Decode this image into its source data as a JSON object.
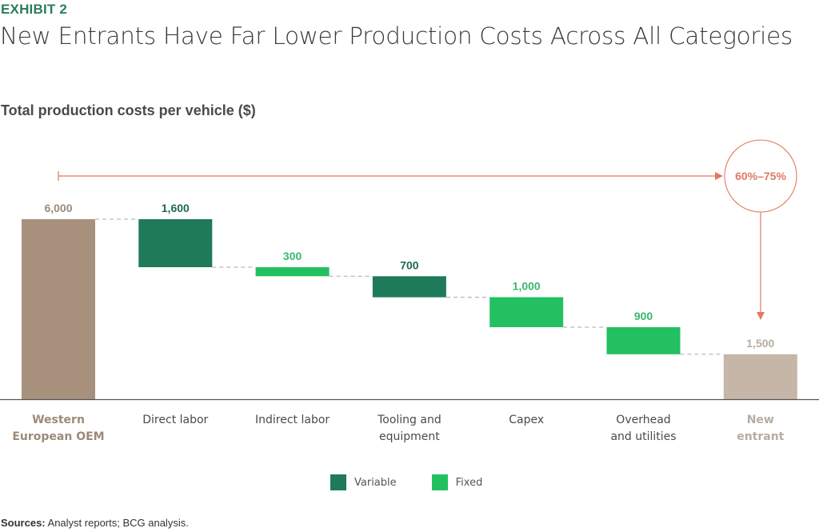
{
  "header": {
    "exhibit": "EXHIBIT 2",
    "title": "New Entrants Have Far Lower Production Costs Across All Categories"
  },
  "footer": {
    "sources_label": "Sources:",
    "sources_text": " Analyst reports; BCG analysis."
  },
  "colors": {
    "total_start": "#a8917c",
    "total_end": "#c5b6a8",
    "variable": "#1e7a58",
    "fixed": "#23c062",
    "variable_label": "#1e6a4c",
    "fixed_label": "#3ab86e",
    "start_label": "#9c8a7a",
    "end_label": "#b8aca0",
    "annotation": "#e07a62",
    "axis_label": "#4a4a4a"
  },
  "chart_data": {
    "type": "waterfall",
    "title": "New Entrants Have Far Lower Production Costs Across All Categories",
    "ylabel": "Total production costs per vehicle ($)",
    "ylim": [
      0,
      6000
    ],
    "grid": false,
    "categories": [
      "Western European OEM",
      "Direct labor",
      "Indirect labor",
      "Tooling and equipment",
      "Capex",
      "Overhead and utilities",
      "New entrant"
    ],
    "category_lines": [
      [
        "Western",
        "European OEM"
      ],
      [
        "Direct labor"
      ],
      [
        "Indirect labor"
      ],
      [
        "Tooling and",
        "equipment"
      ],
      [
        "Capex"
      ],
      [
        "Overhead",
        "and utilities"
      ],
      [
        "New",
        "entrant"
      ]
    ],
    "steps": [
      {
        "label": "Western European OEM",
        "kind": "total_start",
        "value": 6000,
        "data_label": "6,000"
      },
      {
        "label": "Direct labor",
        "kind": "variable",
        "value": -1600,
        "data_label": "1,600"
      },
      {
        "label": "Indirect labor",
        "kind": "fixed",
        "value": -300,
        "data_label": "300"
      },
      {
        "label": "Tooling and equipment",
        "kind": "variable",
        "value": -700,
        "data_label": "700"
      },
      {
        "label": "Capex",
        "kind": "fixed",
        "value": -1000,
        "data_label": "1,000"
      },
      {
        "label": "Overhead and utilities",
        "kind": "fixed",
        "value": -900,
        "data_label": "900"
      },
      {
        "label": "New entrant",
        "kind": "total_end",
        "value": 1500,
        "data_label": "1,500"
      }
    ],
    "legend": [
      {
        "name": "Variable",
        "kind": "variable"
      },
      {
        "name": "Fixed",
        "kind": "fixed"
      }
    ],
    "legend_position": "bottom-center",
    "annotation": {
      "text": "60%–75%",
      "meaning": "cost reduction from Western European OEM to New entrant"
    }
  }
}
